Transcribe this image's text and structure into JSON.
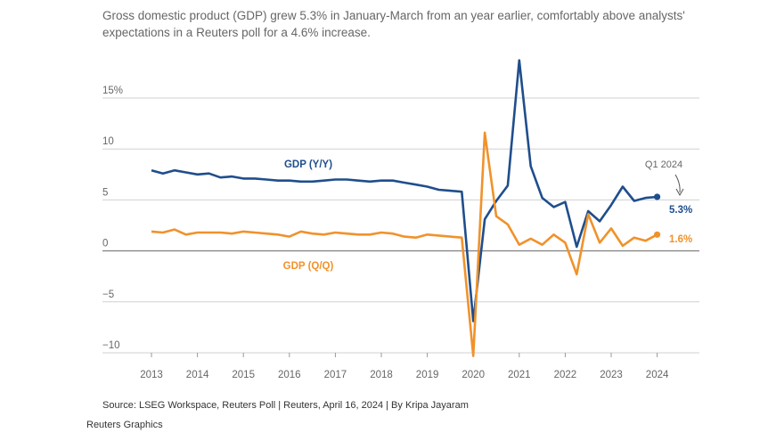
{
  "chart_data": {
    "type": "line",
    "subtitle": "Gross domestic product (GDP) grew 5.3% in January-March from an year earlier, comfortably above analysts' expectations in a Reuters poll for a 4.6% increase.",
    "source": "Source: LSEG Workspace, Reuters Poll | Reuters, April 16, 2024 | By Kripa Jayaram",
    "credit": "Reuters Graphics",
    "ylim": [
      -10,
      15
    ],
    "y_ticks": [
      {
        "value": 15,
        "label": "15%"
      },
      {
        "value": 10,
        "label": "10"
      },
      {
        "value": 5,
        "label": "5"
      },
      {
        "value": 0,
        "label": "0"
      },
      {
        "value": -5,
        "label": "−5"
      },
      {
        "value": -10,
        "label": "−10"
      }
    ],
    "x_ticks": [
      "2013",
      "2014",
      "2015",
      "2016",
      "2017",
      "2018",
      "2019",
      "2020",
      "2021",
      "2022",
      "2023",
      "2024"
    ],
    "grid": true,
    "annotation": "Q1 2024",
    "colors": {
      "yy": "#1f4e8c",
      "qq": "#f0922b",
      "grid": "#d0d0d0",
      "zero": "#888888"
    },
    "series": [
      {
        "key": "yy",
        "name": "GDP (Y/Y)",
        "end_label": "5.3%",
        "values": [
          [
            "2013 Q1",
            7.9
          ],
          [
            "2013 Q2",
            7.6
          ],
          [
            "2013 Q3",
            7.9
          ],
          [
            "2013 Q4",
            7.7
          ],
          [
            "2014 Q1",
            7.5
          ],
          [
            "2014 Q2",
            7.6
          ],
          [
            "2014 Q3",
            7.2
          ],
          [
            "2014 Q4",
            7.3
          ],
          [
            "2015 Q1",
            7.1
          ],
          [
            "2015 Q2",
            7.1
          ],
          [
            "2015 Q3",
            7.0
          ],
          [
            "2015 Q4",
            6.9
          ],
          [
            "2016 Q1",
            6.9
          ],
          [
            "2016 Q2",
            6.8
          ],
          [
            "2016 Q3",
            6.8
          ],
          [
            "2016 Q4",
            6.9
          ],
          [
            "2017 Q1",
            7.0
          ],
          [
            "2017 Q2",
            7.0
          ],
          [
            "2017 Q3",
            6.9
          ],
          [
            "2017 Q4",
            6.8
          ],
          [
            "2018 Q1",
            6.9
          ],
          [
            "2018 Q2",
            6.9
          ],
          [
            "2018 Q3",
            6.7
          ],
          [
            "2018 Q4",
            6.5
          ],
          [
            "2019 Q1",
            6.3
          ],
          [
            "2019 Q2",
            6.0
          ],
          [
            "2019 Q3",
            5.9
          ],
          [
            "2019 Q4",
            5.8
          ],
          [
            "2020 Q1",
            -6.9
          ],
          [
            "2020 Q2",
            3.1
          ],
          [
            "2020 Q3",
            4.9
          ],
          [
            "2020 Q4",
            6.4
          ],
          [
            "2021 Q1",
            18.7
          ],
          [
            "2021 Q2",
            8.3
          ],
          [
            "2021 Q3",
            5.2
          ],
          [
            "2021 Q4",
            4.3
          ],
          [
            "2022 Q1",
            4.8
          ],
          [
            "2022 Q2",
            0.4
          ],
          [
            "2022 Q3",
            3.9
          ],
          [
            "2022 Q4",
            2.9
          ],
          [
            "2023 Q1",
            4.5
          ],
          [
            "2023 Q2",
            6.3
          ],
          [
            "2023 Q3",
            4.9
          ],
          [
            "2023 Q4",
            5.2
          ],
          [
            "2024 Q1",
            5.3
          ]
        ]
      },
      {
        "key": "qq",
        "name": "GDP (Q/Q)",
        "end_label": "1.6%",
        "values": [
          [
            "2013 Q1",
            1.9
          ],
          [
            "2013 Q2",
            1.8
          ],
          [
            "2013 Q3",
            2.1
          ],
          [
            "2013 Q4",
            1.6
          ],
          [
            "2014 Q1",
            1.8
          ],
          [
            "2014 Q2",
            1.8
          ],
          [
            "2014 Q3",
            1.8
          ],
          [
            "2014 Q4",
            1.7
          ],
          [
            "2015 Q1",
            1.9
          ],
          [
            "2015 Q2",
            1.8
          ],
          [
            "2015 Q3",
            1.7
          ],
          [
            "2015 Q4",
            1.6
          ],
          [
            "2016 Q1",
            1.4
          ],
          [
            "2016 Q2",
            1.9
          ],
          [
            "2016 Q3",
            1.7
          ],
          [
            "2016 Q4",
            1.6
          ],
          [
            "2017 Q1",
            1.8
          ],
          [
            "2017 Q2",
            1.7
          ],
          [
            "2017 Q3",
            1.6
          ],
          [
            "2017 Q4",
            1.6
          ],
          [
            "2018 Q1",
            1.8
          ],
          [
            "2018 Q2",
            1.7
          ],
          [
            "2018 Q3",
            1.4
          ],
          [
            "2018 Q4",
            1.3
          ],
          [
            "2019 Q1",
            1.6
          ],
          [
            "2019 Q2",
            1.5
          ],
          [
            "2019 Q3",
            1.4
          ],
          [
            "2019 Q4",
            1.3
          ],
          [
            "2020 Q1",
            -10.3
          ],
          [
            "2020 Q2",
            11.6
          ],
          [
            "2020 Q3",
            3.4
          ],
          [
            "2020 Q4",
            2.6
          ],
          [
            "2021 Q1",
            0.6
          ],
          [
            "2021 Q2",
            1.2
          ],
          [
            "2021 Q3",
            0.6
          ],
          [
            "2021 Q4",
            1.6
          ],
          [
            "2022 Q1",
            0.8
          ],
          [
            "2022 Q2",
            -2.3
          ],
          [
            "2022 Q3",
            3.6
          ],
          [
            "2022 Q4",
            0.8
          ],
          [
            "2023 Q1",
            2.2
          ],
          [
            "2023 Q2",
            0.5
          ],
          [
            "2023 Q3",
            1.3
          ],
          [
            "2023 Q4",
            1.0
          ],
          [
            "2024 Q1",
            1.6
          ]
        ]
      }
    ]
  }
}
